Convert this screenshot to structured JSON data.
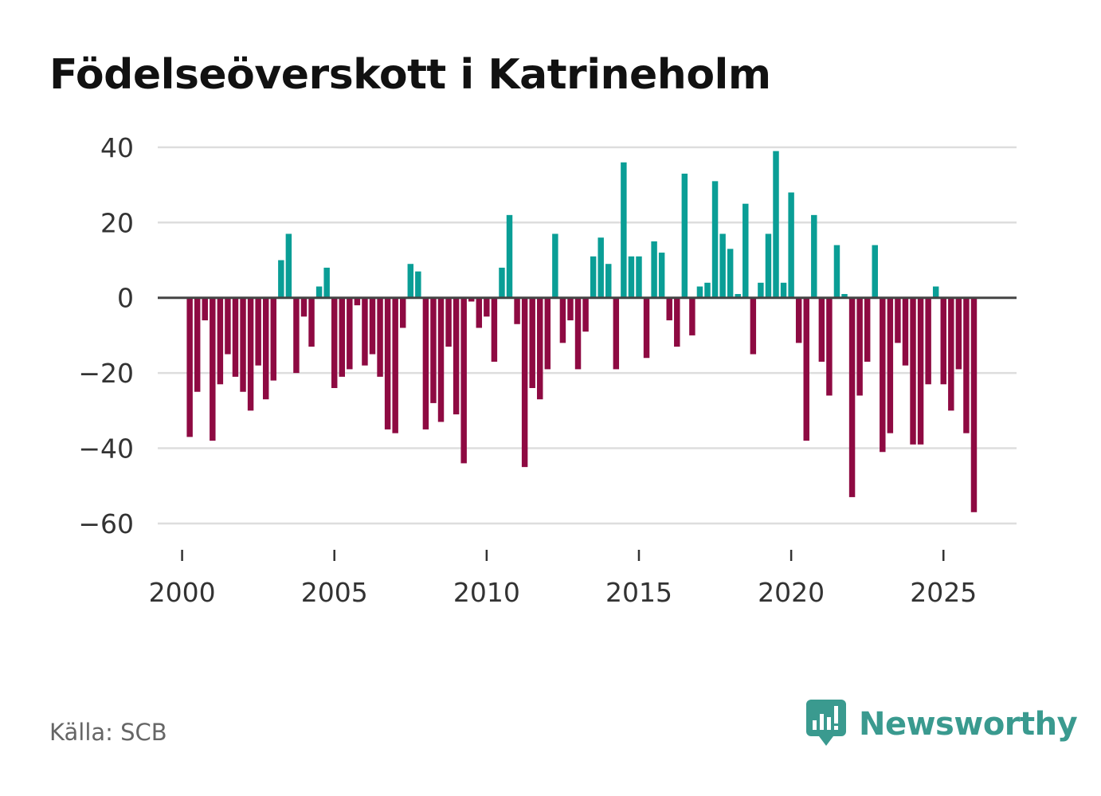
{
  "header": {
    "title": "Födelseöverskott i Katrineholm"
  },
  "footer": {
    "source": "Källa: SCB",
    "brand": "Newsworthy"
  },
  "colors": {
    "positive": "#0a9e96",
    "negative": "#8e0a42",
    "grid": "#dddddd",
    "zero_line": "#444444",
    "brand": "#3a9a8f"
  },
  "chart_data": {
    "type": "bar",
    "title": "Födelseöverskott i Katrineholm",
    "xlabel": "",
    "ylabel": "",
    "x_start": 2000.25,
    "x_step": 0.25,
    "x_ticks": [
      2000,
      2005,
      2010,
      2015,
      2020,
      2025
    ],
    "y_ticks": [
      40,
      20,
      0,
      -20,
      -40,
      -60
    ],
    "y_tick_labels": [
      "40",
      "20",
      "0",
      "−20",
      "−40",
      "−60"
    ],
    "xlim": [
      1999.2,
      2027.4
    ],
    "ylim": [
      -67,
      44
    ],
    "grid": true,
    "values": [
      -37,
      -25,
      -6,
      -38,
      -23,
      -15,
      -21,
      -25,
      -30,
      -18,
      -27,
      -22,
      10,
      17,
      -20,
      -5,
      -13,
      3,
      8,
      -24,
      -21,
      -19,
      -2,
      -18,
      -15,
      -21,
      -35,
      -36,
      -8,
      9,
      7,
      -35,
      -28,
      -33,
      -13,
      -31,
      -44,
      -1,
      -8,
      -5,
      -17,
      8,
      22,
      -7,
      -45,
      -24,
      -27,
      -19,
      17,
      -12,
      -6,
      -19,
      -9,
      11,
      16,
      9,
      -19,
      36,
      11,
      11,
      -16,
      15,
      12,
      -6,
      -13,
      33,
      -10,
      3,
      4,
      31,
      17,
      13,
      1,
      25,
      -15,
      4,
      17,
      39,
      4,
      28,
      -12,
      -38,
      22,
      -17,
      -26,
      14,
      1,
      -53,
      -26,
      -17,
      14,
      -41,
      -36,
      -12,
      -18,
      -39,
      -39,
      -23,
      3,
      -23,
      -30,
      -19,
      -36,
      -57
    ]
  }
}
